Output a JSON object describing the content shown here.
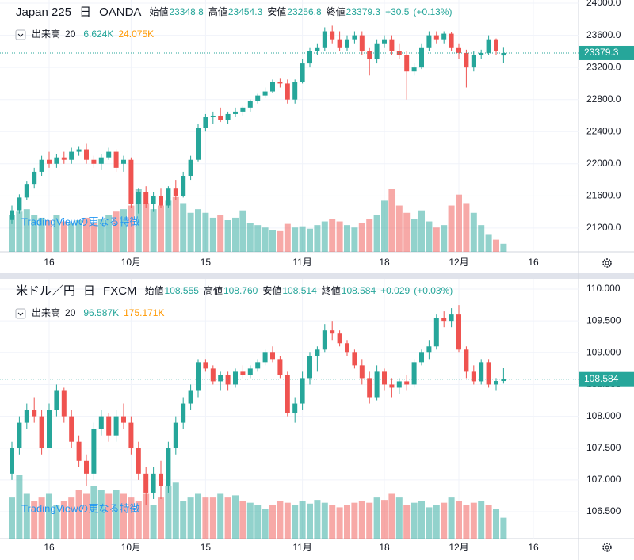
{
  "chart_data": [
    {
      "type": "candlestick",
      "symbol": "Japan 225",
      "interval": "日",
      "source": "OANDA",
      "quote": [
        {
          "name": "始値",
          "value": 23348.8
        },
        {
          "name": "高値",
          "value": 23454.3
        },
        {
          "name": "安値",
          "value": 23256.8
        },
        {
          "name": "終値",
          "value": 23379.3
        }
      ],
      "change": {
        "value": 30.5,
        "label": "+30.5"
      },
      "change_pct": {
        "value": 0.13,
        "label": "(+0.13%)"
      },
      "volume_title": "出来高",
      "volume_ma_period": 20,
      "volume_last": {
        "value": 6624,
        "label": "6.624K"
      },
      "volume_ma": {
        "value": 24075,
        "label": "24.075K"
      },
      "watermark": "TradingViewの更なる特徴",
      "last_price": {
        "value": 23379.3,
        "label": "23379.3"
      },
      "up_color": "#26a69a",
      "down_color": "#ef5350",
      "ma_color": "#ff9800",
      "categories": [
        null,
        null,
        null,
        null,
        null,
        "16",
        null,
        null,
        null,
        null,
        null,
        null,
        null,
        null,
        null,
        null,
        "10月",
        null,
        null,
        null,
        null,
        null,
        null,
        null,
        null,
        null,
        "15",
        null,
        null,
        null,
        null,
        null,
        null,
        null,
        null,
        null,
        null,
        null,
        null,
        "11月",
        null,
        null,
        null,
        null,
        null,
        null,
        null,
        null,
        null,
        null,
        "18",
        null,
        null,
        null,
        null,
        null,
        null,
        null,
        null,
        null,
        "12月",
        null,
        null,
        null,
        null,
        null,
        null,
        null,
        null,
        null,
        "16"
      ],
      "open": [
        21300,
        21420,
        21580,
        21750,
        21900,
        22050,
        22000,
        22080,
        22050,
        22150,
        22180,
        22050,
        22000,
        22080,
        22150,
        22000,
        22050,
        21500,
        21650,
        21500,
        21600,
        21480,
        21700,
        21600,
        21850,
        22050,
        22450,
        22580,
        22600,
        22550,
        22620,
        22650,
        22700,
        22780,
        22850,
        22900,
        23020,
        23000,
        22800,
        23020,
        23250,
        23400,
        23450,
        23650,
        23550,
        23450,
        23550,
        23600,
        23400,
        23300,
        23500,
        23550,
        23400,
        23350,
        23150,
        23200,
        23450,
        23600,
        23550,
        23620,
        23450,
        23380,
        23200,
        23350,
        23380,
        23550,
        23348.8,
        null,
        null,
        null,
        null
      ],
      "high": [
        21480,
        21620,
        21780,
        21950,
        22100,
        22150,
        22120,
        22150,
        22200,
        22220,
        22250,
        22100,
        22120,
        22200,
        22180,
        22100,
        22080,
        21700,
        21720,
        21650,
        21700,
        21720,
        21800,
        21900,
        22100,
        22500,
        22620,
        22650,
        22700,
        22650,
        22700,
        22720,
        22800,
        22870,
        22950,
        23050,
        23060,
        23050,
        23050,
        23300,
        23450,
        23500,
        23700,
        23720,
        23650,
        23600,
        23650,
        23650,
        23450,
        23550,
        23600,
        23600,
        23500,
        23400,
        23250,
        23500,
        23650,
        23650,
        23650,
        23640,
        23500,
        23420,
        23400,
        23420,
        23600,
        23560,
        23454.3,
        null,
        null,
        null,
        null
      ],
      "low": [
        21250,
        21380,
        21550,
        21700,
        21850,
        21950,
        21950,
        22000,
        22000,
        22100,
        22000,
        21950,
        21930,
        22050,
        21900,
        21900,
        21450,
        21380,
        21450,
        21400,
        21450,
        21450,
        21550,
        21580,
        21800,
        22030,
        22400,
        22500,
        22520,
        22500,
        22580,
        22600,
        22650,
        22750,
        22820,
        22880,
        22950,
        22750,
        22750,
        23000,
        23200,
        23350,
        23400,
        23500,
        23400,
        23400,
        23500,
        23350,
        23100,
        23250,
        23450,
        23350,
        23300,
        22800,
        23100,
        23180,
        23400,
        23500,
        23500,
        23400,
        23300,
        22950,
        23150,
        23300,
        23350,
        23350,
        23256.8,
        null,
        null,
        null,
        null
      ],
      "close": [
        21420,
        21580,
        21750,
        21900,
        22050,
        22000,
        22080,
        22050,
        22150,
        22180,
        22050,
        22000,
        22080,
        22150,
        21950,
        22050,
        21500,
        21650,
        21500,
        21600,
        21480,
        21700,
        21600,
        21850,
        22050,
        22450,
        22580,
        22600,
        22550,
        22620,
        22650,
        22700,
        22780,
        22850,
        22900,
        23020,
        23000,
        22800,
        23020,
        23250,
        23400,
        23450,
        23650,
        23550,
        23450,
        23550,
        23600,
        23400,
        23300,
        23500,
        23550,
        23400,
        23350,
        23150,
        23200,
        23450,
        23600,
        23550,
        23620,
        23450,
        23380,
        23200,
        23350,
        23380,
        23550,
        23400,
        23379.3,
        null,
        null,
        null,
        null
      ],
      "volume": [
        30000,
        33000,
        35000,
        30000,
        28000,
        26000,
        30000,
        25000,
        24000,
        26000,
        28000,
        24000,
        27000,
        30000,
        33000,
        35000,
        38000,
        52000,
        40000,
        35000,
        38000,
        42000,
        45000,
        40000,
        32000,
        35000,
        32000,
        28000,
        30000,
        26000,
        28000,
        34000,
        24000,
        22000,
        20000,
        18000,
        17000,
        23000,
        20000,
        21000,
        19000,
        22000,
        25000,
        27000,
        25000,
        22000,
        20000,
        24000,
        27000,
        30000,
        42000,
        52000,
        38000,
        32000,
        27000,
        34000,
        25000,
        20000,
        22000,
        38000,
        47000,
        40000,
        32000,
        22000,
        14000,
        10000,
        6624,
        null,
        null,
        null,
        null
      ],
      "ylim": [
        20903,
        24040
      ],
      "yticks": [
        {
          "value": 21200,
          "label": "21200.0"
        },
        {
          "value": 21600,
          "label": "21600.0"
        },
        {
          "value": 22000,
          "label": "22000.0"
        },
        {
          "value": 22400,
          "label": "22400.0"
        },
        {
          "value": 22800,
          "label": "22800.0"
        },
        {
          "value": 23200,
          "label": "23200.0"
        },
        {
          "value": 23600,
          "label": "23600.0"
        },
        {
          "value": 24000,
          "label": "24000.0"
        }
      ],
      "grid": true
    },
    {
      "type": "candlestick",
      "symbol": "米ドル／円",
      "interval": "日",
      "source": "FXCM",
      "quote": [
        {
          "name": "始値",
          "value": {
            "value": 108.555,
            "label": "108.555"
          }
        },
        {
          "name": "高値",
          "value": {
            "value": 108.76,
            "label": "108.760"
          }
        },
        {
          "name": "安値",
          "value": {
            "value": 108.514,
            "label": "108.514"
          }
        },
        {
          "name": "終値",
          "value": {
            "value": 108.584,
            "label": "108.584"
          }
        }
      ],
      "change": {
        "value": 0.029,
        "label": "+0.029"
      },
      "change_pct": {
        "value": 0.03,
        "label": "(+0.03%)"
      },
      "volume_title": "出来高",
      "volume_ma_period": 20,
      "volume_last": {
        "value": 96587,
        "label": "96.587K"
      },
      "volume_ma": {
        "value": 175171,
        "label": "175.171K"
      },
      "watermark": "TradingViewの更なる特徴",
      "last_price": {
        "value": 108.584,
        "label": "108.584"
      },
      "up_color": "#26a69a",
      "down_color": "#ef5350",
      "ma_color": "#ff9800",
      "categories": [
        null,
        null,
        null,
        null,
        null,
        "16",
        null,
        null,
        null,
        null,
        null,
        null,
        null,
        null,
        null,
        null,
        "10月",
        null,
        null,
        null,
        null,
        null,
        null,
        null,
        null,
        null,
        "15",
        null,
        null,
        null,
        null,
        null,
        null,
        null,
        null,
        null,
        null,
        null,
        null,
        "11月",
        null,
        null,
        null,
        null,
        null,
        null,
        null,
        null,
        null,
        null,
        "18",
        null,
        null,
        null,
        null,
        null,
        null,
        null,
        null,
        null,
        "12月",
        null,
        null,
        null,
        null,
        null,
        null,
        null,
        null,
        null,
        "16"
      ],
      "open": [
        107.1,
        107.5,
        107.9,
        108.1,
        108.0,
        107.5,
        108.1,
        108.4,
        108.0,
        107.6,
        107.3,
        107.1,
        107.8,
        108.0,
        107.7,
        108.0,
        107.9,
        107.5,
        107.1,
        106.8,
        107.1,
        106.9,
        107.5,
        107.9,
        108.2,
        108.4,
        108.85,
        108.75,
        108.55,
        108.65,
        108.5,
        108.7,
        108.65,
        108.75,
        108.85,
        109.0,
        108.9,
        108.65,
        108.05,
        108.2,
        108.6,
        108.95,
        109.05,
        109.35,
        109.3,
        109.15,
        109.0,
        108.8,
        108.6,
        108.3,
        108.7,
        108.5,
        108.45,
        108.55,
        108.5,
        108.85,
        109.0,
        109.1,
        109.55,
        109.5,
        109.6,
        109.05,
        108.7,
        108.55,
        108.85,
        108.5,
        108.555,
        null,
        null,
        null,
        null
      ],
      "high": [
        107.6,
        108.0,
        108.2,
        108.3,
        108.1,
        108.2,
        108.5,
        108.45,
        108.1,
        107.7,
        107.4,
        107.9,
        108.1,
        108.05,
        108.1,
        108.2,
        108.0,
        107.6,
        107.2,
        107.2,
        107.3,
        107.6,
        108.0,
        108.3,
        108.5,
        108.9,
        108.9,
        108.8,
        108.7,
        108.7,
        108.75,
        108.8,
        108.8,
        108.9,
        109.05,
        109.1,
        108.95,
        108.7,
        108.3,
        108.7,
        109.0,
        109.1,
        109.45,
        109.5,
        109.35,
        109.2,
        109.05,
        108.9,
        108.7,
        108.8,
        108.75,
        108.6,
        108.6,
        108.65,
        108.9,
        109.05,
        109.2,
        109.6,
        109.65,
        109.7,
        109.75,
        109.1,
        108.8,
        108.9,
        108.9,
        108.6,
        108.76,
        null,
        null,
        null,
        null
      ],
      "low": [
        107.0,
        107.4,
        107.8,
        107.9,
        107.4,
        107.5,
        108.0,
        107.9,
        107.5,
        107.2,
        106.9,
        107.0,
        107.7,
        107.6,
        107.6,
        107.8,
        107.4,
        107.0,
        106.6,
        106.7,
        106.7,
        106.8,
        107.4,
        107.8,
        108.1,
        108.3,
        108.7,
        108.5,
        108.4,
        108.4,
        108.45,
        108.6,
        108.6,
        108.7,
        108.8,
        108.85,
        108.6,
        108.0,
        107.9,
        108.1,
        108.5,
        108.7,
        109.0,
        109.2,
        109.1,
        108.95,
        108.75,
        108.5,
        108.2,
        108.25,
        108.4,
        108.3,
        108.35,
        108.4,
        108.45,
        108.8,
        108.9,
        109.05,
        109.4,
        109.4,
        109.0,
        108.6,
        108.5,
        108.5,
        108.45,
        108.4,
        108.514,
        null,
        null,
        null,
        null
      ],
      "close": [
        107.5,
        107.9,
        108.1,
        108.0,
        107.5,
        108.1,
        108.4,
        108.0,
        107.6,
        107.3,
        107.1,
        107.8,
        108.0,
        107.7,
        108.0,
        107.9,
        107.5,
        107.1,
        106.8,
        107.1,
        106.9,
        107.5,
        107.9,
        108.2,
        108.4,
        108.85,
        108.75,
        108.55,
        108.65,
        108.5,
        108.7,
        108.65,
        108.75,
        108.85,
        109.0,
        108.9,
        108.65,
        108.05,
        108.2,
        108.6,
        108.95,
        109.05,
        109.35,
        109.3,
        109.15,
        109.0,
        108.8,
        108.6,
        108.3,
        108.7,
        108.5,
        108.45,
        108.55,
        108.5,
        108.85,
        109.0,
        109.1,
        109.55,
        109.5,
        109.6,
        109.05,
        108.7,
        108.55,
        108.85,
        108.5,
        108.555,
        108.584,
        null,
        null,
        null,
        null
      ],
      "volume": [
        190000,
        293000,
        207000,
        173000,
        190000,
        207000,
        155000,
        173000,
        190000,
        224000,
        207000,
        242000,
        224000,
        207000,
        224000,
        207000,
        190000,
        173000,
        207000,
        155000,
        190000,
        242000,
        259000,
        173000,
        190000,
        207000,
        190000,
        190000,
        207000,
        190000,
        200000,
        173000,
        166000,
        155000,
        138000,
        155000,
        173000,
        166000,
        155000,
        173000,
        162000,
        179000,
        166000,
        155000,
        145000,
        155000,
        166000,
        173000,
        166000,
        190000,
        179000,
        207000,
        190000,
        155000,
        166000,
        173000,
        145000,
        155000,
        166000,
        190000,
        173000,
        155000,
        166000,
        173000,
        155000,
        138000,
        96587,
        null,
        null,
        null,
        null
      ],
      "ylim": [
        106.077,
        110.162
      ],
      "yticks": [
        {
          "value": 106.5,
          "label": "106.500"
        },
        {
          "value": 107,
          "label": "107.000"
        },
        {
          "value": 107.5,
          "label": "107.500"
        },
        {
          "value": 108,
          "label": "108.000"
        },
        {
          "value": 108.5,
          "label": "108.500"
        },
        {
          "value": 109,
          "label": "109.000"
        },
        {
          "value": 109.5,
          "label": "109.500"
        },
        {
          "value": 110,
          "label": "110.000"
        }
      ],
      "grid": true
    }
  ]
}
